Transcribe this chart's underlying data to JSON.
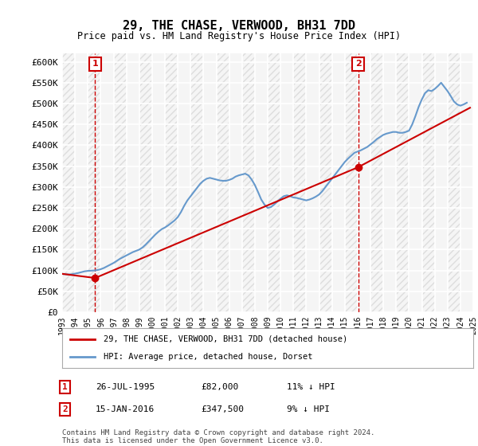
{
  "title": "29, THE CHASE, VERWOOD, BH31 7DD",
  "subtitle": "Price paid vs. HM Land Registry's House Price Index (HPI)",
  "ylim": [
    0,
    620000
  ],
  "yticks": [
    0,
    50000,
    100000,
    150000,
    200000,
    250000,
    300000,
    350000,
    400000,
    450000,
    500000,
    550000,
    600000
  ],
  "ytick_labels": [
    "£0",
    "£50K",
    "£100K",
    "£150K",
    "£200K",
    "£250K",
    "£300K",
    "£350K",
    "£400K",
    "£450K",
    "£500K",
    "£550K",
    "£600K"
  ],
  "xmin_year": 1993,
  "xmax_year": 2025,
  "xtick_years": [
    1993,
    1994,
    1995,
    1996,
    1997,
    1998,
    1999,
    2000,
    2001,
    2002,
    2003,
    2004,
    2005,
    2006,
    2007,
    2008,
    2009,
    2010,
    2011,
    2012,
    2013,
    2014,
    2015,
    2016,
    2017,
    2018,
    2019,
    2020,
    2021,
    2022,
    2023,
    2024,
    2025
  ],
  "purchase1_x": 1995.57,
  "purchase1_y": 82000,
  "purchase1_label": "1",
  "purchase1_date": "26-JUL-1995",
  "purchase1_price": "£82,000",
  "purchase1_hpi": "11% ↓ HPI",
  "purchase2_x": 2016.04,
  "purchase2_y": 347500,
  "purchase2_label": "2",
  "purchase2_date": "15-JAN-2016",
  "purchase2_price": "£347,500",
  "purchase2_hpi": "9% ↓ HPI",
  "property_line_color": "#cc0000",
  "hpi_line_color": "#6699cc",
  "vline_color": "#cc0000",
  "background_color": "#ffffff",
  "plot_bg_color": "#f5f5f5",
  "grid_color": "#ffffff",
  "legend_label1": "29, THE CHASE, VERWOOD, BH31 7DD (detached house)",
  "legend_label2": "HPI: Average price, detached house, Dorset",
  "footer": "Contains HM Land Registry data © Crown copyright and database right 2024.\nThis data is licensed under the Open Government Licence v3.0.",
  "hpi_data_x": [
    1993.0,
    1993.25,
    1993.5,
    1993.75,
    1994.0,
    1994.25,
    1994.5,
    1994.75,
    1995.0,
    1995.25,
    1995.5,
    1995.75,
    1996.0,
    1996.25,
    1996.5,
    1996.75,
    1997.0,
    1997.25,
    1997.5,
    1997.75,
    1998.0,
    1998.25,
    1998.5,
    1998.75,
    1999.0,
    1999.25,
    1999.5,
    1999.75,
    2000.0,
    2000.25,
    2000.5,
    2000.75,
    2001.0,
    2001.25,
    2001.5,
    2001.75,
    2002.0,
    2002.25,
    2002.5,
    2002.75,
    2003.0,
    2003.25,
    2003.5,
    2003.75,
    2004.0,
    2004.25,
    2004.5,
    2004.75,
    2005.0,
    2005.25,
    2005.5,
    2005.75,
    2006.0,
    2006.25,
    2006.5,
    2006.75,
    2007.0,
    2007.25,
    2007.5,
    2007.75,
    2008.0,
    2008.25,
    2008.5,
    2008.75,
    2009.0,
    2009.25,
    2009.5,
    2009.75,
    2010.0,
    2010.25,
    2010.5,
    2010.75,
    2011.0,
    2011.25,
    2011.5,
    2011.75,
    2012.0,
    2012.25,
    2012.5,
    2012.75,
    2013.0,
    2013.25,
    2013.5,
    2013.75,
    2014.0,
    2014.25,
    2014.5,
    2014.75,
    2015.0,
    2015.25,
    2015.5,
    2015.75,
    2016.0,
    2016.25,
    2016.5,
    2016.75,
    2017.0,
    2017.25,
    2017.5,
    2017.75,
    2018.0,
    2018.25,
    2018.5,
    2018.75,
    2019.0,
    2019.25,
    2019.5,
    2019.75,
    2020.0,
    2020.25,
    2020.5,
    2020.75,
    2021.0,
    2021.25,
    2021.5,
    2021.75,
    2022.0,
    2022.25,
    2022.5,
    2022.75,
    2023.0,
    2023.25,
    2023.5,
    2023.75,
    2024.0,
    2024.25,
    2024.5
  ],
  "hpi_data_y": [
    92000,
    91000,
    90500,
    91000,
    92500,
    94000,
    96000,
    98000,
    99000,
    99500,
    100000,
    101000,
    103000,
    106000,
    110000,
    114000,
    118000,
    123000,
    128000,
    132000,
    136000,
    140000,
    144000,
    147000,
    150000,
    155000,
    162000,
    170000,
    178000,
    186000,
    193000,
    199000,
    203000,
    208000,
    214000,
    220000,
    228000,
    240000,
    255000,
    268000,
    278000,
    288000,
    298000,
    308000,
    315000,
    320000,
    322000,
    320000,
    318000,
    316000,
    315000,
    315000,
    317000,
    320000,
    325000,
    328000,
    330000,
    332000,
    328000,
    318000,
    305000,
    288000,
    270000,
    258000,
    250000,
    252000,
    258000,
    265000,
    272000,
    278000,
    280000,
    278000,
    275000,
    274000,
    272000,
    270000,
    268000,
    270000,
    273000,
    277000,
    282000,
    290000,
    300000,
    310000,
    320000,
    330000,
    340000,
    350000,
    360000,
    368000,
    375000,
    382000,
    385000,
    388000,
    392000,
    396000,
    402000,
    408000,
    415000,
    420000,
    425000,
    428000,
    430000,
    432000,
    432000,
    430000,
    430000,
    432000,
    435000,
    450000,
    470000,
    492000,
    510000,
    525000,
    532000,
    530000,
    535000,
    542000,
    550000,
    540000,
    530000,
    518000,
    505000,
    498000,
    495000,
    498000,
    502000
  ],
  "property_data_x": [
    1993.0,
    1995.57,
    2016.04,
    2024.75
  ],
  "property_data_y": [
    92000,
    82000,
    347500,
    490000
  ]
}
